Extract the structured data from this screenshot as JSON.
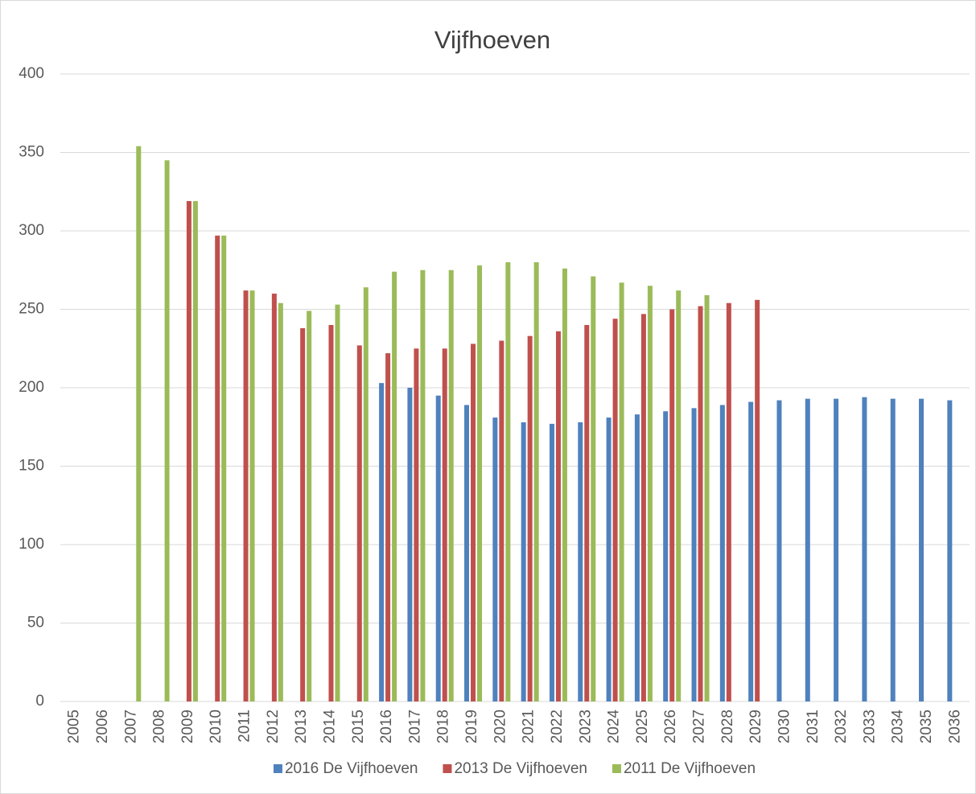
{
  "chart_data": {
    "type": "bar",
    "title": "Vijfhoeven",
    "categories": [
      "2005",
      "2006",
      "2007",
      "2008",
      "2009",
      "2010",
      "2011",
      "2012",
      "2013",
      "2014",
      "2015",
      "2016",
      "2017",
      "2018",
      "2019",
      "2020",
      "2021",
      "2022",
      "2023",
      "2024",
      "2025",
      "2026",
      "2027",
      "2028",
      "2029",
      "2030",
      "2031",
      "2032",
      "2033",
      "2034",
      "2035",
      "2036"
    ],
    "series": [
      {
        "name": "2016 De Vijfhoeven",
        "color": "#4f81bd",
        "values": [
          null,
          null,
          null,
          null,
          null,
          null,
          null,
          null,
          null,
          null,
          null,
          203,
          200,
          195,
          189,
          181,
          178,
          177,
          178,
          181,
          183,
          185,
          187,
          189,
          191,
          192,
          193,
          193,
          194,
          193,
          193,
          192
        ]
      },
      {
        "name": "2013 De Vijfhoeven",
        "color": "#c0504d",
        "values": [
          null,
          null,
          null,
          null,
          319,
          297,
          262,
          260,
          238,
          240,
          227,
          222,
          225,
          225,
          228,
          230,
          233,
          236,
          240,
          244,
          247,
          250,
          252,
          254,
          256,
          null,
          null,
          null,
          null,
          null,
          null,
          null
        ]
      },
      {
        "name": "2011 De Vijfhoeven",
        "color": "#9bbb59",
        "values": [
          null,
          null,
          354,
          345,
          319,
          297,
          262,
          254,
          249,
          253,
          264,
          274,
          275,
          275,
          278,
          280,
          280,
          276,
          271,
          267,
          265,
          262,
          259,
          null,
          null,
          null,
          null,
          null,
          null,
          null,
          null,
          null
        ]
      }
    ],
    "ylim": [
      0,
      400
    ],
    "yticks": [
      0,
      50,
      100,
      150,
      200,
      250,
      300,
      350,
      400
    ],
    "grid": true,
    "legend": "bottom"
  }
}
